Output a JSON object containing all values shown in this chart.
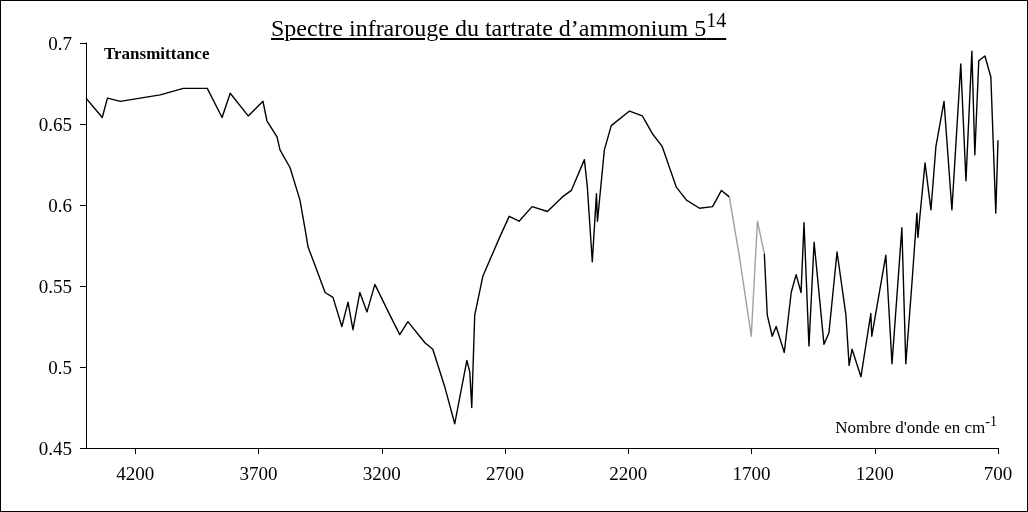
{
  "chart_data": {
    "type": "line",
    "title": "Spectre infrarouge du tartrate d’ammonium 5$^{14}$",
    "xlabel": "Nombre d'onde en cm$^{-1}$",
    "ylabel": "Transmittance",
    "xlim": [
      4400,
      700
    ],
    "xticks": [
      4200,
      3700,
      3200,
      2700,
      2200,
      1700,
      1200,
      700
    ],
    "ylim": [
      0.45,
      0.7
    ],
    "yticks": [
      0.45,
      0.5,
      0.55,
      0.6,
      0.65,
      0.7
    ],
    "grid": false,
    "marker": "none",
    "line_style": "solid",
    "series": [
      {
        "color": "#000000",
        "x": [
          4400,
          4334,
          4313,
          4261,
          4099,
          4005,
          3908,
          3848,
          3815,
          3742,
          3682,
          3666,
          3625,
          3613,
          3572,
          3532,
          3511,
          3499,
          3479,
          3430,
          3398,
          3362,
          3337,
          3317,
          3289,
          3260,
          3228,
          3167,
          3127,
          3094,
          3025,
          2993,
          2945,
          2904,
          2855,
          2843,
          2835,
          2823,
          2790,
          2722,
          2683,
          2643,
          2590,
          2528,
          2467,
          2431,
          2378,
          2366,
          2346,
          2329,
          2325,
          2297,
          2269,
          2195,
          2143,
          2102,
          2062,
          2005,
          1964,
          1911,
          1858,
          1822,
          1790
        ],
        "values": [
          0.666,
          0.654,
          0.666,
          0.664,
          0.668,
          0.672,
          0.672,
          0.654,
          0.669,
          0.655,
          0.664,
          0.652,
          0.642,
          0.634,
          0.623,
          0.603,
          0.585,
          0.574,
          0.566,
          0.546,
          0.543,
          0.525,
          0.54,
          0.523,
          0.546,
          0.534,
          0.551,
          0.532,
          0.52,
          0.528,
          0.515,
          0.511,
          0.488,
          0.465,
          0.504,
          0.497,
          0.475,
          0.532,
          0.556,
          0.58,
          0.593,
          0.59,
          0.599,
          0.596,
          0.605,
          0.609,
          0.628,
          0.611,
          0.565,
          0.607,
          0.59,
          0.634,
          0.649,
          0.658,
          0.655,
          0.644,
          0.636,
          0.611,
          0.603,
          0.598,
          0.599,
          0.609,
          0.605
        ]
      },
      {
        "color": "#a0a0a0",
        "x": [
          1790,
          1749,
          1701,
          1676,
          1648
        ],
        "values": [
          0.605,
          0.568,
          0.519,
          0.59,
          0.57
        ]
      },
      {
        "color": "#000000",
        "x": [
          1648,
          1636,
          1616,
          1600,
          1567,
          1539,
          1519,
          1499,
          1487,
          1467,
          1446,
          1406,
          1386,
          1353,
          1317,
          1304,
          1292,
          1256,
          1216,
          1212,
          1155,
          1130,
          1090,
          1074,
          1049,
          1029,
          1025,
          996,
          972,
          952,
          919,
          887,
          851,
          830,
          806,
          794,
          778,
          753,
          729,
          709,
          700
        ],
        "values": [
          0.57,
          0.532,
          0.519,
          0.525,
          0.509,
          0.546,
          0.557,
          0.546,
          0.589,
          0.513,
          0.577,
          0.514,
          0.521,
          0.571,
          0.532,
          0.501,
          0.511,
          0.494,
          0.533,
          0.519,
          0.569,
          0.502,
          0.586,
          0.502,
          0.552,
          0.595,
          0.58,
          0.626,
          0.597,
          0.636,
          0.664,
          0.597,
          0.687,
          0.615,
          0.695,
          0.631,
          0.689,
          0.692,
          0.679,
          0.595,
          0.64
        ]
      }
    ]
  }
}
